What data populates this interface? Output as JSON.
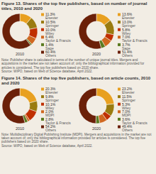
{
  "chart_data": [
    {
      "type": "donut",
      "title": "Figure 13. Shares of the top five publishers, based on number of journal titles, 2010 and 2020",
      "note": "Note: Publisher share is calculated in terms of the number of unique journal titles. Mergers and acquisitions in the market are not taken account of; only the bibliographical information provided for articles is considered. The top five publishers based on 2020 share.\nSource: WIPO, based on Web of Science database, April 2022.",
      "categories": [
        "Elsevier",
        "Springer",
        "Wiley",
        "Taylor & Francis",
        "Sage",
        "Others"
      ],
      "colors": [
        "#E8A020",
        "#9A7B10",
        "#C03000",
        "#D06820",
        "#5A7A20",
        "#6B2008"
      ],
      "series": [
        {
          "name": "2010",
          "values": [
            11.3,
            10.5,
            10.0,
            6.4,
            1.4,
            60.4
          ],
          "value_labels": [
            "11.3%",
            "10.5%",
            "10.0%",
            "6.4%",
            "1.4%",
            "60.4%"
          ]
        },
        {
          "name": "2020",
          "values": [
            13.6,
            13.0,
            5.8,
            7.0,
            3.7,
            51.4
          ],
          "value_labels": [
            "13.6%",
            "13.0%",
            "5.8%",
            "7.0%",
            "3.7%",
            "51.4%"
          ]
        }
      ],
      "data_labels": true,
      "legend": "right"
    },
    {
      "type": "donut",
      "title": "Figure 14. Shares of the top five publishers, based on article counts, 2010 and 2020",
      "note": "Note: Multidisciplinary Digital Publishing Institute (MDPI). Mergers and acquisitions in the market are not taken account of; only the bibliographical information provided for articles is considered. The top five publishers based on 2020 share.\nSource: WIPO, based on Web of Science database, April 2022.",
      "categories": [
        "Elsevier",
        "Springer",
        "Wiley",
        "MDPI",
        "Taylor & Francis",
        "Others"
      ],
      "colors": [
        "#E8A020",
        "#9A7B10",
        "#C03000",
        "#D06820",
        "#5A7A20",
        "#6B2008"
      ],
      "series": [
        {
          "name": "2010",
          "values": [
            20.3,
            9.8,
            10.1,
            2.0,
            2.8,
            54.2
          ],
          "value_labels": [
            "20.3%",
            "9.8%",
            "10.1%",
            "2.0%",
            "2.8%",
            "54.2%"
          ]
        },
        {
          "name": "2020",
          "values": [
            23.2,
            11.5,
            5.3,
            7.0,
            3.6,
            49.4
          ],
          "value_labels": [
            "23.2%",
            "11.5%",
            "5.3%",
            "7.0%",
            "3.6%",
            "49.4%"
          ]
        }
      ],
      "data_labels": true,
      "legend": "right"
    }
  ]
}
